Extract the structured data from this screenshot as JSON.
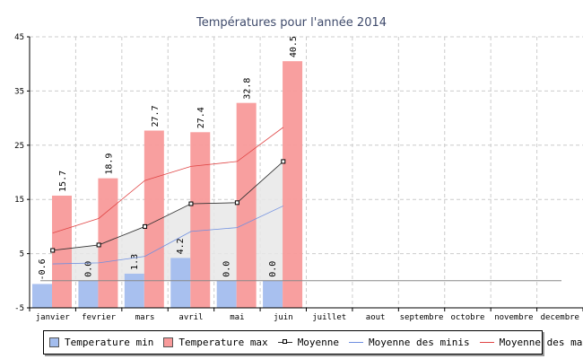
{
  "chart_data": {
    "type": "bar",
    "title": "Températures pour l'année 2014",
    "categories": [
      "janvier",
      "fevrier",
      "mars",
      "avril",
      "mai",
      "juin",
      "juillet",
      "aout",
      "septembre",
      "octobre",
      "novembre",
      "decembre"
    ],
    "series": [
      {
        "name": "Temperature min",
        "kind": "bar",
        "color": "#a3bdee",
        "values": [
          -0.6,
          0.0,
          1.3,
          4.2,
          0.0,
          0.0,
          null,
          null,
          null,
          null,
          null,
          null
        ],
        "labels": [
          "-0.6",
          "0.0",
          "1.3",
          "4.2",
          "0.0",
          "0.0"
        ]
      },
      {
        "name": "Temperature max",
        "kind": "bar",
        "color": "#f89a9a",
        "values": [
          15.7,
          18.9,
          27.7,
          27.4,
          32.8,
          40.5,
          null,
          null,
          null,
          null,
          null,
          null
        ],
        "labels": [
          "15.7",
          "18.9",
          "27.7",
          "27.4",
          "32.8",
          "40.5"
        ]
      },
      {
        "name": "Moyenne",
        "kind": "line-marker",
        "color": "#333333",
        "values": [
          5.6,
          6.6,
          10.0,
          14.2,
          14.4,
          22.0,
          null,
          null,
          null,
          null,
          null,
          null
        ]
      },
      {
        "name": "Moyenne des minis",
        "kind": "line",
        "color": "#6f8fe0",
        "values": [
          3.1,
          3.3,
          4.5,
          9.1,
          9.8,
          13.8,
          null,
          null,
          null,
          null,
          null,
          null
        ]
      },
      {
        "name": "Moyenne des maxis",
        "kind": "line",
        "color": "#e04545",
        "values": [
          8.8,
          11.5,
          18.5,
          21.1,
          22.0,
          28.3,
          null,
          null,
          null,
          null,
          null,
          null
        ]
      }
    ],
    "ylim": [
      -5,
      45
    ],
    "yticks": [
      -5,
      5,
      15,
      25,
      35,
      45
    ],
    "grid": true,
    "legend_position": "bottom",
    "colors": {
      "grid": "#cccccc",
      "title": "#3e4a6b",
      "fill": "#e8e8e8",
      "zero_line": "#888888"
    }
  }
}
